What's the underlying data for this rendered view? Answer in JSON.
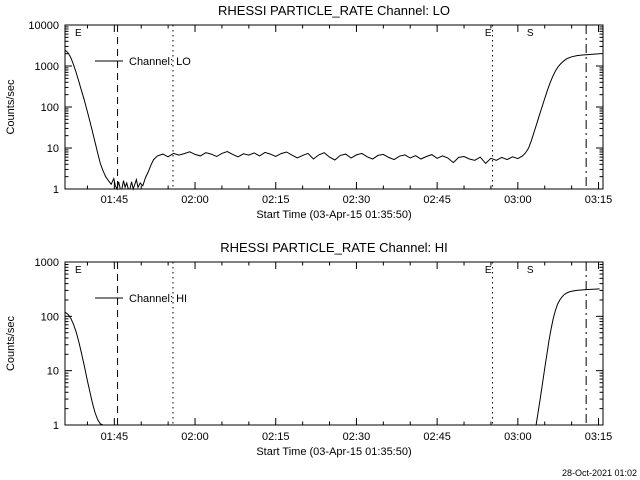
{
  "colors": {
    "foreground": "#000000",
    "background": "#ffffff"
  },
  "footer": {
    "timestamp": "28-Oct-2021 01:02"
  },
  "chart_data": [
    {
      "type": "line",
      "title": "RHESSI PARTICLE_RATE Channel: LO",
      "ylabel": "Counts/sec",
      "xlabel": "Start Time (03-Apr-15 01:35:50)",
      "yscale": "log",
      "ylim": [
        1,
        10000
      ],
      "xlim_minutes": [
        95.83,
        195.83
      ],
      "yticks": [
        {
          "v": 1,
          "label": "1"
        },
        {
          "v": 10,
          "label": "10"
        },
        {
          "v": 100,
          "label": "100"
        },
        {
          "v": 1000,
          "label": "1000"
        },
        {
          "v": 10000,
          "label": "10000"
        }
      ],
      "xticks": [
        {
          "t": 105,
          "label": "01:45"
        },
        {
          "t": 120,
          "label": "02:00"
        },
        {
          "t": 135,
          "label": "02:15"
        },
        {
          "t": 150,
          "label": "02:30"
        },
        {
          "t": 165,
          "label": "02:45"
        },
        {
          "t": 180,
          "label": "03:00"
        },
        {
          "t": 195,
          "label": "03:15"
        }
      ],
      "legend_label": "Channel: LO",
      "event_markers": [
        {
          "t": 98.3,
          "label": "E"
        },
        {
          "t": 174.5,
          "label": "E"
        },
        {
          "t": 182.3,
          "label": "S"
        }
      ],
      "reflines": [
        {
          "t": 105.6,
          "style": "dashed"
        },
        {
          "t": 115.9,
          "style": "dotted"
        },
        {
          "t": 175.3,
          "style": "dotted"
        },
        {
          "t": 192.7,
          "style": "dashdot"
        }
      ],
      "points": [
        [
          95.9,
          2400
        ],
        [
          96.4,
          2100
        ],
        [
          96.9,
          1600
        ],
        [
          97.4,
          1100
        ],
        [
          97.9,
          700
        ],
        [
          98.4,
          420
        ],
        [
          98.9,
          250
        ],
        [
          99.4,
          150
        ],
        [
          99.9,
          85
        ],
        [
          100.4,
          48
        ],
        [
          100.9,
          26
        ],
        [
          101.4,
          14
        ],
        [
          101.9,
          7.5
        ],
        [
          102.4,
          4.2
        ],
        [
          102.9,
          2.8
        ],
        [
          103.4,
          2.0
        ],
        [
          103.9,
          1.6
        ],
        [
          104.4,
          1.3
        ],
        [
          104.9,
          1.8
        ],
        [
          105.2,
          1.2
        ],
        [
          105.5,
          1.0
        ],
        [
          105.8,
          1.5
        ],
        [
          106.1,
          1.0
        ],
        [
          106.4,
          1.0
        ],
        [
          106.7,
          1.6
        ],
        [
          107.0,
          1.1
        ],
        [
          107.3,
          1.4
        ],
        [
          107.6,
          1.0
        ],
        [
          107.9,
          1.0
        ],
        [
          108.2,
          1.5
        ],
        [
          108.5,
          1.0
        ],
        [
          108.8,
          1.3
        ],
        [
          109.1,
          1.7
        ],
        [
          109.4,
          1.1
        ],
        [
          109.8,
          1.4
        ],
        [
          110.3,
          1.2
        ],
        [
          110.8,
          1.9
        ],
        [
          111.3,
          2.6
        ],
        [
          111.8,
          3.8
        ],
        [
          112.3,
          5.2
        ],
        [
          113,
          6.4
        ],
        [
          114,
          7.1
        ],
        [
          115,
          6.1
        ],
        [
          116,
          7.4
        ],
        [
          117,
          6.7
        ],
        [
          118,
          7.3
        ],
        [
          119,
          8.1
        ],
        [
          120,
          7.0
        ],
        [
          121,
          6.4
        ],
        [
          122,
          7.7
        ],
        [
          123,
          7.1
        ],
        [
          124,
          6.2
        ],
        [
          125,
          7.4
        ],
        [
          126,
          8.2
        ],
        [
          127,
          7.0
        ],
        [
          128,
          6.1
        ],
        [
          129,
          7.2
        ],
        [
          130,
          6.7
        ],
        [
          131,
          7.6
        ],
        [
          132,
          6.4
        ],
        [
          133,
          7.8
        ],
        [
          134,
          7.1
        ],
        [
          135,
          6.2
        ],
        [
          136,
          7.3
        ],
        [
          137,
          8.0
        ],
        [
          138,
          6.7
        ],
        [
          139,
          5.7
        ],
        [
          140,
          6.6
        ],
        [
          141,
          7.4
        ],
        [
          142,
          5.4
        ],
        [
          143,
          6.8
        ],
        [
          144,
          7.7
        ],
        [
          145,
          6.0
        ],
        [
          146,
          5.1
        ],
        [
          147,
          6.6
        ],
        [
          148,
          7.1
        ],
        [
          149,
          5.7
        ],
        [
          150,
          6.8
        ],
        [
          151,
          7.4
        ],
        [
          152,
          6.1
        ],
        [
          153,
          5.4
        ],
        [
          154,
          6.6
        ],
        [
          155,
          7.0
        ],
        [
          156,
          5.9
        ],
        [
          157,
          5.2
        ],
        [
          158,
          6.3
        ],
        [
          159,
          6.8
        ],
        [
          160,
          5.7
        ],
        [
          161,
          6.5
        ],
        [
          162,
          5.4
        ],
        [
          163,
          6.2
        ],
        [
          164,
          6.9
        ],
        [
          165,
          5.6
        ],
        [
          166,
          6.4
        ],
        [
          167,
          5.7
        ],
        [
          168,
          4.4
        ],
        [
          169,
          5.9
        ],
        [
          170,
          6.2
        ],
        [
          171,
          5.4
        ],
        [
          172,
          5.0
        ],
        [
          173,
          6.0
        ],
        [
          174,
          4.2
        ],
        [
          175,
          5.6
        ],
        [
          176,
          5.0
        ],
        [
          177,
          5.9
        ],
        [
          178,
          5.2
        ],
        [
          179,
          6.1
        ],
        [
          180,
          5.5
        ],
        [
          180.8,
          6.3
        ],
        [
          181.4,
          7.5
        ],
        [
          182.0,
          10
        ],
        [
          182.5,
          15
        ],
        [
          183.0,
          24
        ],
        [
          183.5,
          39
        ],
        [
          184.0,
          63
        ],
        [
          184.5,
          100
        ],
        [
          185.0,
          160
        ],
        [
          185.5,
          255
        ],
        [
          186.0,
          390
        ],
        [
          186.5,
          560
        ],
        [
          187.0,
          760
        ],
        [
          187.5,
          960
        ],
        [
          188.0,
          1150
        ],
        [
          188.6,
          1350
        ],
        [
          189.2,
          1520
        ],
        [
          190.0,
          1680
        ],
        [
          191.0,
          1790
        ],
        [
          192.0,
          1850
        ],
        [
          193.0,
          1900
        ],
        [
          194.2,
          1950
        ],
        [
          195.2,
          2000
        ]
      ]
    },
    {
      "type": "line",
      "title": "RHESSI PARTICLE_RATE Channel: HI",
      "ylabel": "Counts/sec",
      "xlabel": "Start Time (03-Apr-15 01:35:50)",
      "yscale": "log",
      "ylim": [
        1,
        1000
      ],
      "xlim_minutes": [
        95.83,
        195.83
      ],
      "yticks": [
        {
          "v": 1,
          "label": "1"
        },
        {
          "v": 10,
          "label": "10"
        },
        {
          "v": 100,
          "label": "100"
        },
        {
          "v": 1000,
          "label": "1000"
        }
      ],
      "xticks": [
        {
          "t": 105,
          "label": "01:45"
        },
        {
          "t": 120,
          "label": "02:00"
        },
        {
          "t": 135,
          "label": "02:15"
        },
        {
          "t": 150,
          "label": "02:30"
        },
        {
          "t": 165,
          "label": "02:45"
        },
        {
          "t": 180,
          "label": "03:00"
        },
        {
          "t": 195,
          "label": "03:15"
        }
      ],
      "legend_label": "Channel: HI",
      "event_markers": [
        {
          "t": 98.3,
          "label": "E"
        },
        {
          "t": 174.5,
          "label": "E"
        },
        {
          "t": 182.3,
          "label": "S"
        }
      ],
      "reflines": [
        {
          "t": 105.6,
          "style": "dashed"
        },
        {
          "t": 115.9,
          "style": "dotted"
        },
        {
          "t": 175.3,
          "style": "dotted"
        },
        {
          "t": 192.7,
          "style": "dashdot"
        }
      ],
      "points": [
        [
          95.9,
          118
        ],
        [
          96.4,
          108
        ],
        [
          96.9,
          92
        ],
        [
          97.4,
          72
        ],
        [
          97.9,
          52
        ],
        [
          98.4,
          34
        ],
        [
          98.9,
          21
        ],
        [
          99.4,
          12.5
        ],
        [
          99.9,
          7.2
        ],
        [
          100.4,
          4.3
        ],
        [
          100.9,
          2.6
        ],
        [
          101.4,
          1.7
        ],
        [
          101.9,
          1.25
        ],
        [
          102.4,
          1.05
        ],
        [
          102.9,
          1.0
        ],
        [
          103.2,
          null
        ],
        [
          183.4,
          1.0
        ],
        [
          183.8,
          1.8
        ],
        [
          184.2,
          3.2
        ],
        [
          184.6,
          6
        ],
        [
          185.0,
          11
        ],
        [
          185.4,
          20
        ],
        [
          185.8,
          36
        ],
        [
          186.2,
          60
        ],
        [
          186.6,
          92
        ],
        [
          187.0,
          130
        ],
        [
          187.4,
          168
        ],
        [
          187.8,
          200
        ],
        [
          188.2,
          228
        ],
        [
          188.6,
          250
        ],
        [
          189.0,
          266
        ],
        [
          189.5,
          280
        ],
        [
          190.2,
          292
        ],
        [
          191.0,
          300
        ],
        [
          192.0,
          307
        ],
        [
          193.0,
          312
        ],
        [
          194.0,
          316
        ],
        [
          195.2,
          320
        ]
      ]
    }
  ]
}
